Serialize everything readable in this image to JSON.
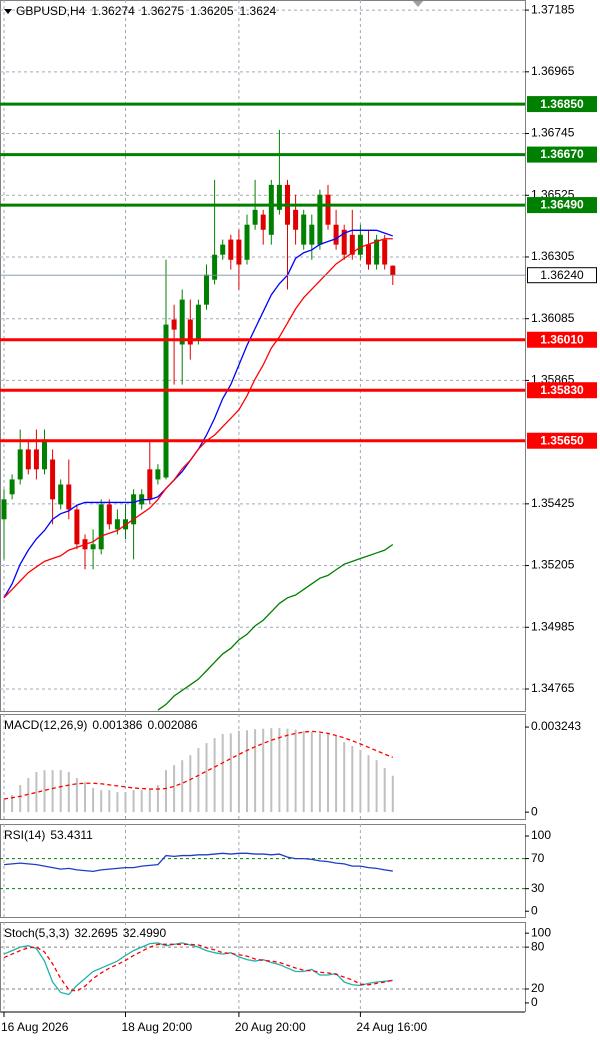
{
  "chart_data": [
    {
      "type": "candlestick",
      "title": "GBPUSD,H4",
      "categories": [
        "16 Aug 2026",
        null,
        null,
        null,
        null,
        null,
        null,
        null,
        null,
        null,
        null,
        null,
        null,
        null,
        null,
        "18 Aug 20:00",
        null,
        null,
        null,
        null,
        null,
        null,
        null,
        null,
        null,
        null,
        null,
        null,
        null,
        "20 Aug 20:00",
        null,
        null,
        null,
        null,
        null,
        null,
        null,
        null,
        null,
        null,
        null,
        null,
        null,
        null,
        "24 Aug 16:00",
        null,
        null,
        null,
        null
      ],
      "open": [
        1.3537,
        1.35459,
        1.35512,
        1.35619,
        1.35619,
        1.35548,
        1.35583,
        1.35423,
        1.35494,
        1.35405,
        1.35299,
        1.35263,
        1.35263,
        1.35423,
        1.35334,
        1.35334,
        1.35352,
        1.35423,
        1.35548,
        1.35512,
        1.35519,
        1.36082,
        1.35993,
        1.36082,
        1.36011,
        1.36135,
        1.36224,
        1.36313,
        1.36367,
        1.36367,
        1.36295,
        1.3642,
        1.36456,
        1.36384,
        1.36473,
        1.36562,
        1.36473,
        1.36349,
        1.36349,
        1.36349,
        1.36527,
        1.3642,
        1.36402,
        1.36384,
        1.36313,
        1.36349,
        1.36278,
        1.36367,
        1.36274
      ],
      "high": [
        1.35477,
        1.3553,
        1.3569,
        1.35655,
        1.3569,
        1.3569,
        1.35619,
        1.35512,
        1.35583,
        1.35423,
        1.35316,
        1.35334,
        1.35441,
        1.35441,
        1.35405,
        1.35423,
        1.35477,
        1.35477,
        1.35655,
        1.35566,
        1.36295,
        1.36135,
        1.36189,
        1.36153,
        1.36153,
        1.36278,
        1.3658,
        1.36367,
        1.36384,
        1.36402,
        1.36456,
        1.3658,
        1.36473,
        1.3658,
        1.36758,
        1.3658,
        1.36527,
        1.36473,
        1.36456,
        1.36545,
        1.36562,
        1.36473,
        1.3642,
        1.36473,
        1.3642,
        1.36402,
        1.36384,
        1.36384,
        1.36275
      ],
      "low": [
        1.35227,
        1.35441,
        1.35494,
        1.3553,
        1.35512,
        1.3553,
        1.35352,
        1.35405,
        1.3537,
        1.35263,
        1.35192,
        1.35192,
        1.35245,
        1.35334,
        1.35316,
        1.35299,
        1.35227,
        1.35405,
        1.35423,
        1.35494,
        1.35512,
        1.3585,
        1.3585,
        1.35939,
        1.35993,
        1.36117,
        1.36207,
        1.36295,
        1.3626,
        1.36189,
        1.36278,
        1.36402,
        1.36349,
        1.36349,
        1.36456,
        1.36189,
        1.36349,
        1.36331,
        1.36295,
        1.36331,
        1.36402,
        1.36331,
        1.36295,
        1.36295,
        1.36295,
        1.3626,
        1.3626,
        1.3626,
        1.36205
      ],
      "close": [
        1.35441,
        1.35512,
        1.35619,
        1.35548,
        1.35548,
        1.35655,
        1.35441,
        1.35494,
        1.35405,
        1.35281,
        1.35263,
        1.35281,
        1.35423,
        1.35352,
        1.3537,
        1.3537,
        1.35459,
        1.35459,
        1.35441,
        1.35548,
        1.36064,
        1.36046,
        1.36153,
        1.35993,
        1.36135,
        1.36242,
        1.36313,
        1.36349,
        1.36295,
        1.36278,
        1.3642,
        1.36473,
        1.36402,
        1.36562,
        1.36562,
        1.3642,
        1.36402,
        1.36456,
        1.3642,
        1.36527,
        1.3642,
        1.36349,
        1.36313,
        1.36313,
        1.36384,
        1.36278,
        1.36367,
        1.36278,
        1.3624
      ],
      "up_color": "#008000",
      "down_color": "#e00000",
      "series": [
        {
          "type": "line",
          "color": "#0000ff",
          "values": [
            1.3509,
            1.3514,
            1.3521,
            1.3526,
            1.353,
            1.3533,
            1.3537,
            1.3539,
            1.354,
            1.3542,
            1.3543,
            1.3543,
            1.3543,
            1.3543,
            1.3543,
            1.3543,
            1.3543,
            1.3544,
            1.3544,
            1.3545,
            1.3548,
            1.3551,
            1.3554,
            1.3558,
            1.3562,
            1.3567,
            1.3573,
            1.358,
            1.3585,
            1.3592,
            1.3599,
            1.3605,
            1.3611,
            1.3617,
            1.3621,
            1.3624,
            1.363,
            1.3632,
            1.3633,
            1.3635,
            1.3636,
            1.3637,
            1.3639,
            1.364,
            1.364,
            1.364,
            1.364,
            1.3639,
            1.3638
          ]
        },
        {
          "type": "line",
          "color": "#ff0000",
          "values": [
            1.3509,
            1.3512,
            1.3515,
            1.3518,
            1.352,
            1.3522,
            1.3523,
            1.3524,
            1.3526,
            1.3527,
            1.3528,
            1.3529,
            1.3531,
            1.3532,
            1.3533,
            1.3535,
            1.3537,
            1.3539,
            1.3541,
            1.3544,
            1.3548,
            1.3551,
            1.3555,
            1.3558,
            1.3562,
            1.3565,
            1.3567,
            1.357,
            1.3573,
            1.3576,
            1.3581,
            1.3587,
            1.3592,
            1.3598,
            1.3602,
            1.3607,
            1.3612,
            1.3616,
            1.3619,
            1.3622,
            1.3625,
            1.3628,
            1.363,
            1.3632,
            1.3634,
            1.3635,
            1.3636,
            1.3637,
            1.3637
          ]
        },
        {
          "type": "line",
          "color": "#008000",
          "values": [
            null,
            null,
            null,
            null,
            null,
            null,
            null,
            null,
            null,
            null,
            null,
            null,
            null,
            null,
            null,
            null,
            null,
            null,
            null,
            1.3469,
            1.3471,
            1.3474,
            1.3476,
            1.3478,
            1.348,
            1.3483,
            1.3486,
            1.3489,
            1.3491,
            1.3494,
            1.3496,
            1.3499,
            1.3501,
            1.3504,
            1.3507,
            1.3509,
            1.351,
            1.3512,
            1.3514,
            1.3516,
            1.3517,
            1.3519,
            1.3521,
            1.3522,
            1.3523,
            1.3524,
            1.3525,
            1.3526,
            1.3528
          ]
        }
      ],
      "levels": [
        {
          "value": 1.3685,
          "label": "1.36850",
          "color": "#008000"
        },
        {
          "value": 1.3667,
          "label": "1.36670",
          "color": "#008000"
        },
        {
          "value": 1.3649,
          "label": "1.36490",
          "color": "#008000"
        },
        {
          "value": 1.3601,
          "label": "1.36010",
          "color": "#ff0000"
        },
        {
          "value": 1.3583,
          "label": "1.35830",
          "color": "#ff0000"
        },
        {
          "value": 1.3565,
          "label": "1.35650",
          "color": "#ff0000"
        }
      ],
      "last_price": {
        "value": 1.3624,
        "label": "1.36240"
      },
      "ylim": [
        1.34683,
        1.37221
      ],
      "yticks": [
        1.37185,
        1.36965,
        1.36745,
        1.36525,
        1.36305,
        1.36085,
        1.35865,
        1.35425,
        1.35205,
        1.34985,
        1.34765
      ],
      "grid": true
    },
    {
      "type": "macd",
      "title": "MACD(12,26,9)",
      "series": [
        {
          "type": "bar",
          "color": "#c0c0c0",
          "values": [
            0.00046,
            0.00065,
            0.00103,
            0.0013,
            0.00153,
            0.0016,
            0.0016,
            0.0016,
            0.00153,
            0.0013,
            0.00114,
            0.00092,
            0.00084,
            0.00084,
            0.00076,
            0.00076,
            0.00084,
            0.00084,
            0.00084,
            0.00103,
            0.0016,
            0.00179,
            0.00198,
            0.00217,
            0.00244,
            0.00263,
            0.00282,
            0.00298,
            0.003,
            0.0031,
            0.00312,
            0.00316,
            0.00318,
            0.0032,
            0.0032,
            0.00318,
            0.00314,
            0.0031,
            0.00306,
            0.003,
            0.00298,
            0.0029,
            0.00267,
            0.00252,
            0.00237,
            0.00217,
            0.00198,
            0.00168,
            0.001386
          ]
        },
        {
          "type": "line",
          "color": "#ff0000",
          "dashed": true,
          "values": [
            0.0005,
            0.00055,
            0.0006,
            0.00068,
            0.00075,
            0.00083,
            0.0009,
            0.00097,
            0.00103,
            0.00108,
            0.0011,
            0.0011,
            0.00108,
            0.00104,
            0.001,
            0.00096,
            0.00092,
            0.0009,
            0.00088,
            0.00088,
            0.0009,
            0.00098,
            0.0011,
            0.00124,
            0.0014,
            0.00156,
            0.00172,
            0.00188,
            0.00204,
            0.0022,
            0.00235,
            0.00249,
            0.00262,
            0.00274,
            0.00284,
            0.00293,
            0.003,
            0.00305,
            0.00308,
            0.00305,
            0.003,
            0.00292,
            0.00283,
            0.00272,
            0.0026,
            0.00247,
            0.00234,
            0.00221,
            0.002086
          ]
        }
      ],
      "ylim": [
        -0.0003,
        0.00374
      ],
      "yticks": [
        0.003243,
        0
      ]
    },
    {
      "type": "line",
      "title": "RSI(14)",
      "series": [
        {
          "type": "line",
          "color": "#1e3cc8",
          "values": [
            62,
            63,
            64,
            63,
            62,
            60,
            58,
            56,
            57,
            55,
            54,
            53,
            55,
            56,
            57,
            58,
            58,
            60,
            61,
            62,
            74,
            73,
            74,
            74,
            75,
            75,
            76,
            77,
            76,
            77,
            77,
            76,
            76,
            75,
            76,
            72,
            70,
            70,
            69,
            67,
            66,
            64,
            63,
            60,
            60,
            58,
            57,
            55,
            53.4311
          ]
        }
      ],
      "levels": [
        70,
        30
      ],
      "level_color": "#008000",
      "ylim": [
        -9,
        116
      ],
      "yticks": [
        100,
        70,
        30,
        0
      ]
    },
    {
      "type": "line",
      "title": "Stoch(5,3,3)",
      "series": [
        {
          "type": "line",
          "color": "#20b2aa",
          "values": [
            70,
            75,
            80,
            82,
            78,
            60,
            30,
            15,
            12,
            25,
            35,
            45,
            50,
            55,
            60,
            68,
            75,
            80,
            85,
            86,
            82,
            84,
            86,
            83,
            80,
            75,
            72,
            70,
            72,
            66,
            62,
            60,
            62,
            58,
            55,
            50,
            45,
            45,
            48,
            40,
            40,
            42,
            30,
            26,
            25,
            28,
            30,
            31,
            32.2695
          ]
        },
        {
          "type": "line",
          "color": "#ff0000",
          "dashed": true,
          "values": [
            65,
            70,
            75,
            79,
            80,
            73,
            56,
            35,
            19,
            17,
            24,
            35,
            43,
            50,
            55,
            61,
            68,
            74,
            80,
            84,
            84,
            84,
            84,
            84,
            83,
            79,
            76,
            72,
            71,
            69,
            67,
            63,
            61,
            60,
            58,
            54,
            50,
            47,
            46,
            44,
            43,
            41,
            37,
            33,
            27,
            26,
            28,
            30,
            32.499
          ],
          "value_labels": [
            null,
            null,
            null,
            null,
            null,
            null,
            null,
            null,
            null,
            null,
            null,
            null,
            null,
            null,
            null,
            null,
            null,
            null,
            null,
            null,
            null,
            null,
            null,
            null,
            null,
            null,
            null,
            null,
            null,
            null,
            null,
            null,
            null,
            null,
            null,
            null,
            null,
            null,
            null,
            null,
            null,
            null,
            null,
            null,
            null,
            null,
            null,
            null,
            "32.4990"
          ]
        }
      ],
      "levels": [
        80,
        20
      ],
      "level_color": "#808080",
      "ylim": [
        -13,
        116
      ],
      "yticks": [
        100,
        80,
        20,
        0
      ]
    }
  ]
}
